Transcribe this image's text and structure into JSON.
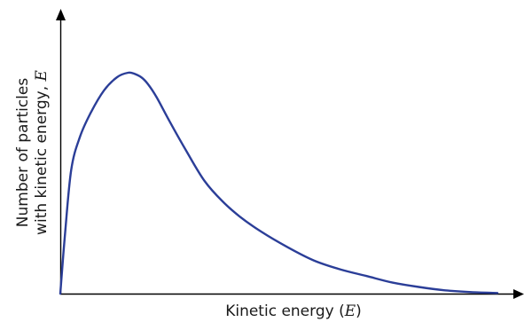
{
  "chart_data": {
    "type": "line",
    "title": "",
    "xlabel": {
      "text": "Kinetic energy (",
      "var": "E",
      "close": ")"
    },
    "ylabel": {
      "line1": "Number of particles",
      "line2": "with kinetic energy, ",
      "var": "E"
    },
    "grid": false,
    "legend": "none",
    "xlim": [
      0,
      1
    ],
    "ylim": [
      0,
      1
    ],
    "series": [
      {
        "x": [
          0,
          0.01,
          0.025,
          0.045,
          0.07,
          0.1,
          0.13,
          0.155,
          0.17,
          0.185,
          0.2,
          0.22,
          0.25,
          0.29,
          0.33,
          0.37,
          0.41,
          0.46,
          0.52,
          0.58,
          0.64,
          0.7,
          0.76,
          0.82,
          0.88,
          0.94,
          1.0
        ],
        "values": [
          0,
          0.25,
          0.56,
          0.71,
          0.82,
          0.92,
          0.98,
          1.0,
          0.995,
          0.98,
          0.95,
          0.89,
          0.78,
          0.64,
          0.51,
          0.42,
          0.35,
          0.28,
          0.21,
          0.15,
          0.11,
          0.08,
          0.05,
          0.03,
          0.015,
          0.007,
          0.003
        ],
        "color": "#2b3e98"
      }
    ]
  }
}
